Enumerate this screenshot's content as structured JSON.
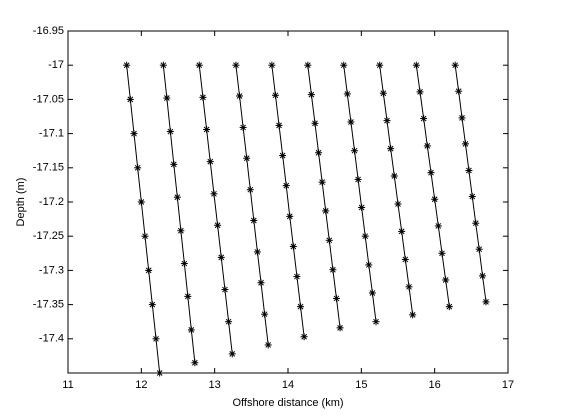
{
  "chart_data": {
    "type": "line",
    "xlabel": "Offshore distance (km)",
    "ylabel": "Depth (m)",
    "xlim": [
      11,
      17
    ],
    "ylim": [
      -17.45,
      -16.95
    ],
    "xticks": [
      11,
      12,
      13,
      14,
      15,
      16,
      17
    ],
    "yticks": [
      -16.95,
      -17,
      -17.05,
      -17.1,
      -17.15,
      -17.2,
      -17.25,
      -17.3,
      -17.35,
      -17.4
    ],
    "marker": "asterisk",
    "series": [
      {
        "color": "#000000",
        "x": [
          11.8,
          11.85,
          11.9,
          11.95,
          12,
          12.05,
          12.1,
          12.15,
          12.2,
          12.25
        ],
        "values": [
          -17,
          -17.05,
          -17.1,
          -17.15,
          -17.2,
          -17.25,
          -17.3,
          -17.35,
          -17.4,
          -17.45
        ]
      },
      {
        "color": "#000000",
        "x": [
          12.3,
          12.348,
          12.396,
          12.443,
          12.491,
          12.539,
          12.587,
          12.634,
          12.682,
          12.73
        ],
        "values": [
          -17,
          -17.048,
          -17.097,
          -17.145,
          -17.193,
          -17.242,
          -17.29,
          -17.338,
          -17.387,
          -17.435
        ]
      },
      {
        "color": "#000000",
        "x": [
          12.79,
          12.84,
          12.89,
          12.94,
          12.99,
          13.04,
          13.09,
          13.14,
          13.19,
          13.24
        ],
        "values": [
          -17,
          -17.047,
          -17.094,
          -17.141,
          -17.188,
          -17.234,
          -17.281,
          -17.328,
          -17.375,
          -17.422
        ]
      },
      {
        "color": "#000000",
        "x": [
          13.29,
          13.339,
          13.388,
          13.437,
          13.486,
          13.534,
          13.583,
          13.632,
          13.681,
          13.73
        ],
        "values": [
          -17,
          -17.045,
          -17.091,
          -17.136,
          -17.182,
          -17.227,
          -17.273,
          -17.318,
          -17.364,
          -17.409
        ]
      },
      {
        "color": "#000000",
        "x": [
          13.78,
          13.829,
          13.878,
          13.927,
          13.976,
          14.024,
          14.073,
          14.122,
          14.171,
          14.22
        ],
        "values": [
          -17,
          -17.044,
          -17.088,
          -17.132,
          -17.176,
          -17.221,
          -17.265,
          -17.309,
          -17.353,
          -17.397
        ]
      },
      {
        "color": "#000000",
        "x": [
          14.27,
          14.319,
          14.368,
          14.417,
          14.466,
          14.514,
          14.563,
          14.612,
          14.661,
          14.71
        ],
        "values": [
          -17,
          -17.043,
          -17.085,
          -17.128,
          -17.171,
          -17.213,
          -17.256,
          -17.299,
          -17.341,
          -17.384
        ]
      },
      {
        "color": "#000000",
        "x": [
          14.76,
          14.809,
          14.858,
          14.907,
          14.956,
          15.004,
          15.053,
          15.102,
          15.151,
          15.2
        ],
        "values": [
          -17,
          -17.042,
          -17.083,
          -17.125,
          -17.167,
          -17.208,
          -17.25,
          -17.292,
          -17.333,
          -17.375
        ]
      },
      {
        "color": "#000000",
        "x": [
          15.25,
          15.3,
          15.35,
          15.4,
          15.45,
          15.5,
          15.55,
          15.6,
          15.65,
          15.7
        ],
        "values": [
          -17,
          -17.041,
          -17.081,
          -17.122,
          -17.162,
          -17.203,
          -17.243,
          -17.284,
          -17.324,
          -17.365
        ]
      },
      {
        "color": "#000000",
        "x": [
          15.75,
          15.8,
          15.85,
          15.9,
          15.95,
          16,
          16.05,
          16.1,
          16.15,
          16.2
        ],
        "values": [
          -17,
          -17.039,
          -17.078,
          -17.118,
          -17.157,
          -17.196,
          -17.235,
          -17.275,
          -17.314,
          -17.353
        ]
      },
      {
        "color": "#000000",
        "x": [
          16.28,
          16.327,
          16.373,
          16.42,
          16.467,
          16.513,
          16.56,
          16.607,
          16.653,
          16.7
        ],
        "values": [
          -17,
          -17.038,
          -17.077,
          -17.115,
          -17.154,
          -17.192,
          -17.231,
          -17.269,
          -17.308,
          -17.346
        ]
      }
    ]
  }
}
